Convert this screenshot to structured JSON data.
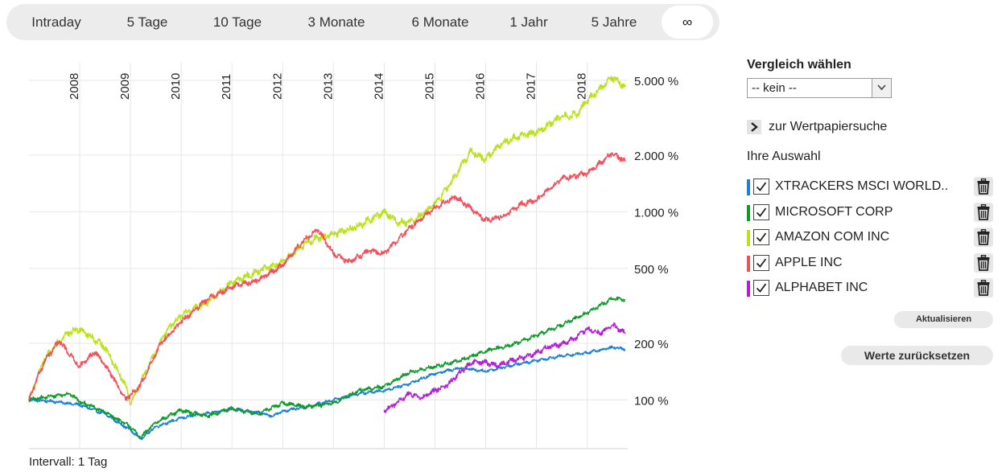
{
  "range_tabs": [
    {
      "label": "Intraday",
      "active": false
    },
    {
      "label": "5 Tage",
      "active": false
    },
    {
      "label": "10 Tage",
      "active": false
    },
    {
      "label": "3 Monate",
      "active": false
    },
    {
      "label": "6 Monate",
      "active": false
    },
    {
      "label": "1 Jahr",
      "active": false
    },
    {
      "label": "5 Jahre",
      "active": false
    },
    {
      "label": "∞",
      "active": true
    }
  ],
  "interval_label": "Intervall: 1 Tag",
  "side": {
    "compare_title": "Vergleich wählen",
    "select_value": "-- kein --",
    "search_link": "zur Wertpapiersuche",
    "selection_label": "Ihre Auswahl",
    "update_button": "Aktualisieren",
    "reset_button": "Werte zurücksetzen"
  },
  "icons": {
    "select_arrow": "chevron-down-icon",
    "search_link": "chevron-right-icon",
    "checkbox": "checkmark-icon",
    "remove": "trash-icon"
  },
  "chart_data": {
    "type": "line",
    "y_scale": "log",
    "ylim": [
      55,
      6200
    ],
    "xlim": [
      2007.0,
      2018.8
    ],
    "x_ticks": [
      2008,
      2009,
      2010,
      2011,
      2012,
      2013,
      2014,
      2015,
      2016,
      2017,
      2018
    ],
    "x_tick_labels": [
      "2008",
      "2009",
      "2010",
      "2011",
      "2012",
      "2013",
      "2014",
      "2015",
      "2016",
      "2017",
      "2018"
    ],
    "y_ticks": [
      100,
      200,
      500,
      1000,
      2000,
      5000
    ],
    "y_tick_labels": [
      "100 %",
      "200 %",
      "500 %",
      "1.000 %",
      "2.000 %",
      "5.000 %"
    ],
    "grid": true,
    "series": [
      {
        "name": "XTRACKERS MSCI WORLD..",
        "color": "#1a7fd8",
        "x": [
          2007.0,
          2007.5,
          2008.0,
          2008.5,
          2009.0,
          2009.2,
          2009.5,
          2010.0,
          2010.5,
          2011.0,
          2011.5,
          2011.8,
          2012.0,
          2012.5,
          2013.0,
          2013.5,
          2014.0,
          2014.5,
          2015.0,
          2015.5,
          2016.0,
          2016.5,
          2017.0,
          2017.5,
          2018.0,
          2018.5,
          2018.75
        ],
        "values": [
          100,
          98,
          94,
          84,
          69,
          62,
          72,
          80,
          85,
          89,
          86,
          82,
          87,
          92,
          100,
          108,
          112,
          122,
          138,
          148,
          142,
          152,
          162,
          171,
          178,
          190,
          186
        ]
      },
      {
        "name": "MICROSOFT CORP",
        "color": "#0f9a2a",
        "x": [
          2007.0,
          2007.3,
          2007.8,
          2008.0,
          2008.5,
          2009.0,
          2009.2,
          2009.5,
          2010.0,
          2010.5,
          2011.0,
          2011.5,
          2012.0,
          2012.5,
          2013.0,
          2013.5,
          2014.0,
          2014.5,
          2015.0,
          2015.5,
          2016.0,
          2016.5,
          2017.0,
          2017.5,
          2018.0,
          2018.5,
          2018.75
        ],
        "values": [
          100,
          103,
          108,
          98,
          86,
          72,
          63,
          76,
          88,
          82,
          90,
          84,
          96,
          92,
          96,
          112,
          118,
          140,
          150,
          162,
          182,
          195,
          220,
          250,
          290,
          345,
          340
        ]
      },
      {
        "name": "AMAZON COM INC",
        "color": "#b9e21c",
        "x": [
          2007.0,
          2007.3,
          2007.7,
          2008.0,
          2008.5,
          2008.9,
          2009.0,
          2009.3,
          2009.7,
          2010.0,
          2010.5,
          2011.0,
          2011.5,
          2012.0,
          2012.5,
          2013.0,
          2013.5,
          2014.0,
          2014.3,
          2014.6,
          2015.0,
          2015.3,
          2015.7,
          2016.0,
          2016.3,
          2016.7,
          2017.0,
          2017.5,
          2017.8,
          2018.0,
          2018.5,
          2018.75
        ],
        "values": [
          100,
          165,
          220,
          240,
          190,
          120,
          95,
          140,
          230,
          280,
          330,
          420,
          480,
          540,
          700,
          760,
          840,
          1000,
          870,
          900,
          1100,
          1400,
          2100,
          1900,
          2300,
          2550,
          2650,
          3200,
          3300,
          3900,
          5200,
          4600
        ]
      },
      {
        "name": "APPLE INC",
        "color": "#f2505a",
        "x": [
          2007.0,
          2007.3,
          2007.6,
          2008.0,
          2008.3,
          2008.6,
          2008.9,
          2009.2,
          2009.6,
          2010.0,
          2010.5,
          2011.0,
          2011.5,
          2012.0,
          2012.4,
          2012.7,
          2013.0,
          2013.3,
          2013.7,
          2014.0,
          2014.5,
          2015.0,
          2015.4,
          2015.7,
          2016.0,
          2016.4,
          2016.7,
          2017.0,
          2017.5,
          2018.0,
          2018.5,
          2018.75
        ],
        "values": [
          100,
          160,
          205,
          150,
          180,
          140,
          100,
          120,
          200,
          260,
          340,
          400,
          430,
          520,
          700,
          800,
          600,
          540,
          620,
          600,
          820,
          1050,
          1200,
          1050,
          900,
          960,
          1100,
          1150,
          1500,
          1600,
          2050,
          1850
        ]
      },
      {
        "name": "ALPHABET INC",
        "color": "#b21fd8",
        "x": [
          2014.0,
          2014.25,
          2014.5,
          2014.75,
          2015.0,
          2015.25,
          2015.5,
          2015.75,
          2016.0,
          2016.25,
          2016.5,
          2016.75,
          2017.0,
          2017.25,
          2017.5,
          2017.75,
          2018.0,
          2018.25,
          2018.5,
          2018.75
        ],
        "values": [
          88,
          96,
          108,
          102,
          112,
          120,
          140,
          160,
          158,
          152,
          162,
          168,
          178,
          192,
          198,
          212,
          238,
          225,
          250,
          225
        ]
      }
    ]
  }
}
